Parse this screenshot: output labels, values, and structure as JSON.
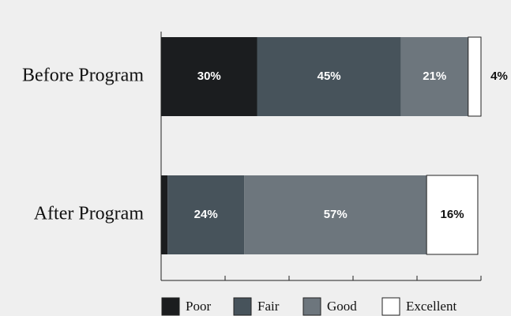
{
  "chart_data": {
    "type": "stacked-bar",
    "orientation": "horizontal",
    "categories": [
      "Before Program",
      "After Program"
    ],
    "series": [
      {
        "name": "Poor",
        "color": "#1b1d1f",
        "values": [
          30,
          2
        ],
        "value_labels": [
          "30%",
          null
        ]
      },
      {
        "name": "Fair",
        "color": "#47535b",
        "values": [
          45,
          24
        ],
        "value_labels": [
          "45%",
          "24%"
        ]
      },
      {
        "name": "Good",
        "color": "#6d767d",
        "values": [
          21,
          57
        ],
        "value_labels": [
          "21%",
          "57%"
        ]
      },
      {
        "name": "Excellent",
        "color": "#ffffff",
        "values": [
          4,
          16
        ],
        "value_labels": [
          "4%",
          "16%"
        ]
      }
    ],
    "xlim": [
      0,
      100
    ],
    "xticks": [
      0,
      20,
      40,
      60,
      80,
      100
    ],
    "legend": "bottom"
  }
}
